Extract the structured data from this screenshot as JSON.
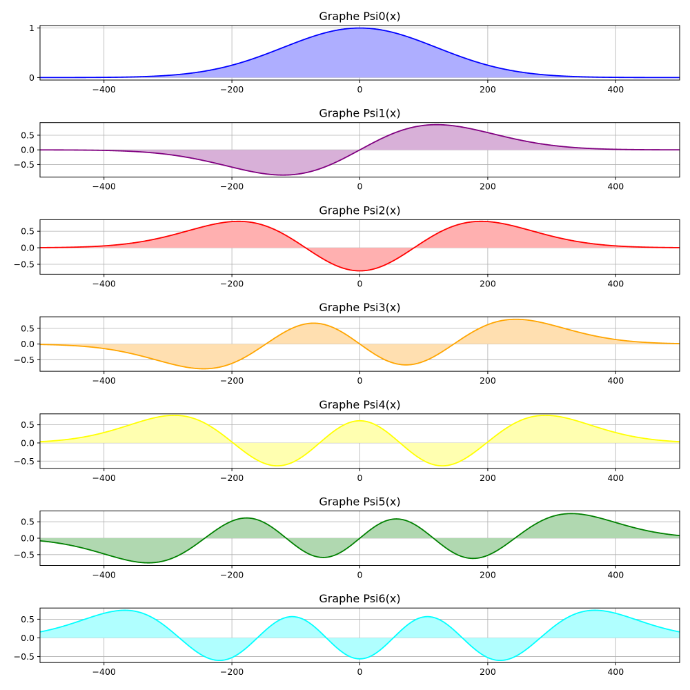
{
  "chart_data": [
    {
      "type": "area",
      "title": "Graphe Psi0(x)",
      "n": 0,
      "color": "#0000ff",
      "fill": "#aeaeff",
      "xlim": [
        -500,
        500
      ],
      "ylim": [
        -0.05,
        1.05
      ],
      "xticks": [
        -400,
        -200,
        0,
        200,
        400
      ],
      "xtick_labels": [
        "−400",
        "−200",
        "0",
        "200",
        "400"
      ],
      "yticks": [
        0,
        1
      ],
      "ytick_labels": [
        "0",
        "1"
      ],
      "grid": true,
      "peak": 1.0
    },
    {
      "type": "area",
      "title": "Graphe Psi1(x)",
      "n": 1,
      "color": "#800080",
      "fill": "#d8b0d8",
      "xlim": [
        -500,
        500
      ],
      "ylim": [
        -0.93,
        0.93
      ],
      "xticks": [
        -400,
        -200,
        0,
        200,
        400
      ],
      "xtick_labels": [
        "−400",
        "−200",
        "0",
        "200",
        "400"
      ],
      "yticks": [
        -0.5,
        0,
        0.5
      ],
      "ytick_labels": [
        "−0.5",
        "0.0",
        "0.5"
      ],
      "grid": true,
      "peak": 0.86
    },
    {
      "type": "area",
      "title": "Graphe Psi2(x)",
      "n": 2,
      "color": "#ff0000",
      "fill": "#ffb0b0",
      "xlim": [
        -500,
        500
      ],
      "ylim": [
        -0.8,
        0.85
      ],
      "xticks": [
        -400,
        -200,
        0,
        200,
        400
      ],
      "xtick_labels": [
        "−400",
        "−200",
        "0",
        "200",
        "400"
      ],
      "yticks": [
        -0.5,
        0,
        0.5
      ],
      "ytick_labels": [
        "−0.5",
        "0.0",
        "0.5"
      ],
      "grid": true,
      "peak": 0.8
    },
    {
      "type": "area",
      "title": "Graphe Psi3(x)",
      "n": 3,
      "color": "#ffa500",
      "fill": "#ffdfb0",
      "xlim": [
        -500,
        500
      ],
      "ylim": [
        -0.87,
        0.87
      ],
      "xticks": [
        -400,
        -200,
        0,
        200,
        400
      ],
      "xtick_labels": [
        "−400",
        "−200",
        "0",
        "200",
        "400"
      ],
      "yticks": [
        -0.5,
        0,
        0.5
      ],
      "ytick_labels": [
        "−0.5",
        "0.0",
        "0.5"
      ],
      "grid": true,
      "peak": 0.79
    },
    {
      "type": "area",
      "title": "Graphe Psi4(x)",
      "n": 4,
      "color": "#ffff00",
      "fill": "#ffffb0",
      "xlim": [
        -500,
        500
      ],
      "ylim": [
        -0.7,
        0.8
      ],
      "xticks": [
        -400,
        -200,
        0,
        200,
        400
      ],
      "xtick_labels": [
        "−400",
        "−200",
        "0",
        "200",
        "400"
      ],
      "yticks": [
        -0.5,
        0,
        0.5
      ],
      "ytick_labels": [
        "−0.5",
        "0.0",
        "0.5"
      ],
      "grid": true,
      "peak": 0.76
    },
    {
      "type": "area",
      "title": "Graphe Psi5(x)",
      "n": 5,
      "color": "#008000",
      "fill": "#b0d8b0",
      "xlim": [
        -500,
        500
      ],
      "ylim": [
        -0.83,
        0.83
      ],
      "xticks": [
        -400,
        -200,
        0,
        200,
        400
      ],
      "xtick_labels": [
        "−400",
        "−200",
        "0",
        "200",
        "400"
      ],
      "yticks": [
        -0.5,
        0,
        0.5
      ],
      "ytick_labels": [
        "−0.5",
        "0.0",
        "0.5"
      ],
      "grid": true,
      "peak": 0.75
    },
    {
      "type": "area",
      "title": "Graphe Psi6(x)",
      "n": 6,
      "color": "#00ffff",
      "fill": "#b0ffff",
      "xlim": [
        -500,
        500
      ],
      "ylim": [
        -0.66,
        0.8
      ],
      "xticks": [
        -400,
        -200,
        0,
        200,
        400
      ],
      "xtick_labels": [
        "−400",
        "−200",
        "0",
        "200",
        "400"
      ],
      "yticks": [
        -0.5,
        0,
        0.5
      ],
      "ytick_labels": [
        "−0.5",
        "0.0",
        "0.5"
      ],
      "grid": true,
      "peak": 0.74
    }
  ]
}
